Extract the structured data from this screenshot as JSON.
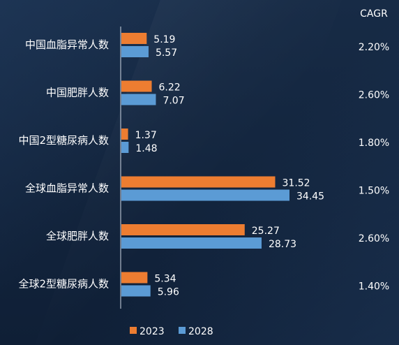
{
  "chart_data": {
    "type": "bar",
    "orientation": "horizontal",
    "categories": [
      "中国血脂异常人数",
      "中国肥胖人数",
      "中国2型糖尿病人数",
      "全球血脂异常人数",
      "全球肥胖人数",
      "全球2型糖尿病人数"
    ],
    "series": [
      {
        "name": "2023",
        "color": "#ed7d31",
        "values": [
          5.19,
          6.22,
          1.37,
          31.52,
          25.27,
          5.34
        ],
        "labels": [
          "5.19",
          "6.22",
          "1.37",
          "31.52",
          "25.27",
          "5.34"
        ]
      },
      {
        "name": "2028",
        "color": "#5b9bd5",
        "values": [
          5.57,
          7.07,
          1.48,
          34.45,
          28.73,
          5.96
        ],
        "labels": [
          "5.57",
          "7.07",
          "1.48",
          "34.45",
          "28.73",
          "5.96"
        ]
      }
    ],
    "cagr_header": "CAGR",
    "cagr": [
      "2.20%",
      "2.60%",
      "1.80%",
      "1.50%",
      "2.60%",
      "1.40%"
    ],
    "xlim": [
      0,
      35
    ],
    "legend_position": "bottom",
    "grid": false
  }
}
